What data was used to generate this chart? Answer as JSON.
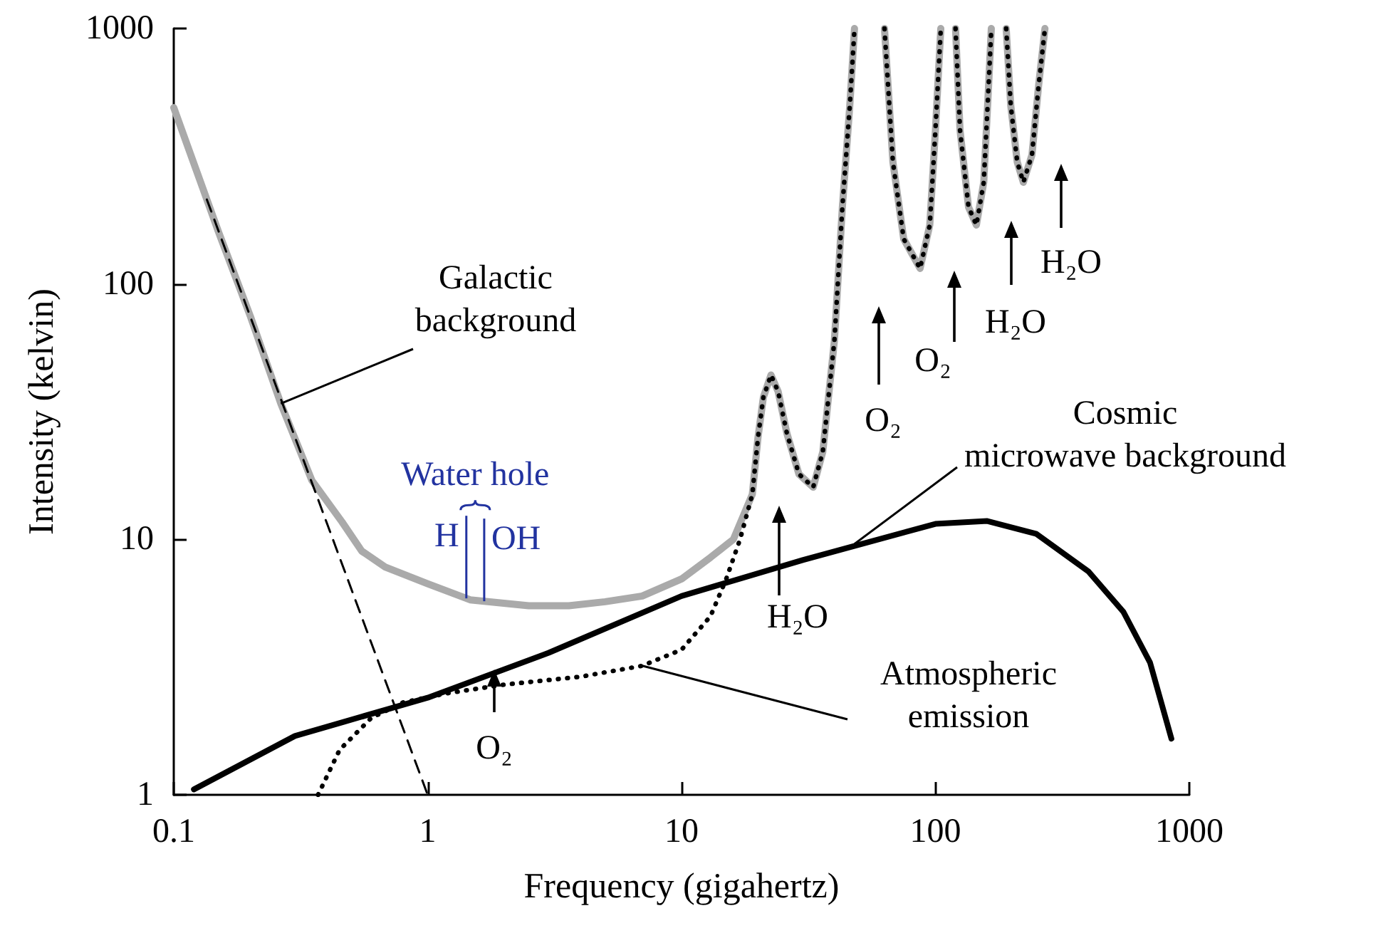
{
  "chart_data": {
    "type": "line",
    "xlabel": "Frequency (gigahertz)",
    "ylabel": "Intensity (kelvin)",
    "log": "xy",
    "xlim": [
      0.1,
      1000
    ],
    "ylim": [
      1,
      1000
    ],
    "xticks": [
      0.1,
      1,
      10,
      100,
      1000
    ],
    "yticks": [
      1,
      10,
      100,
      1000
    ],
    "grid": false,
    "marker": "none",
    "line_style": "solid",
    "series": [
      {
        "color": "#aaaaaa",
        "x": [
          0.1,
          0.15,
          0.2,
          0.264,
          0.35,
          0.46,
          0.55,
          0.68,
          1,
          1.47,
          2.5,
          3.6,
          5,
          7,
          10,
          13,
          16,
          19,
          20,
          21,
          22.5,
          24,
          26,
          29,
          33,
          36,
          40,
          43,
          46,
          48,
          null,
          63,
          68,
          75,
          87,
          95,
          100,
          105,
          null,
          120,
          125,
          135,
          145,
          155,
          162,
          166,
          null,
          190,
          198,
          210,
          222,
          240,
          255,
          270
        ],
        "values": [
          490,
          160,
          75,
          34,
          17,
          11.7,
          9,
          7.8,
          6.7,
          5.8,
          5.5,
          5.5,
          5.7,
          6,
          7,
          8.5,
          10,
          15,
          25,
          36,
          44,
          38,
          26,
          18,
          16,
          22,
          60,
          200,
          500,
          1000,
          null,
          1000,
          300,
          150,
          115,
          170,
          400,
          1000,
          null,
          1000,
          400,
          200,
          170,
          250,
          600,
          1000,
          null,
          1000,
          500,
          300,
          250,
          320,
          600,
          1000
        ]
      },
      {
        "color": "#000000",
        "line_style": "dotted",
        "x": [
          0.37,
          0.45,
          0.6,
          0.8,
          1.2,
          2,
          4,
          7,
          10,
          13,
          15,
          17,
          19,
          20,
          21,
          22.5,
          24,
          26,
          29,
          33,
          36,
          40,
          43,
          46,
          48,
          null,
          63,
          68,
          75,
          87,
          95,
          100,
          105,
          null,
          120,
          125,
          135,
          145,
          155,
          162,
          166,
          null,
          190,
          198,
          210,
          222,
          240,
          255,
          270
        ],
        "values": [
          1,
          1.5,
          2,
          2.3,
          2.5,
          2.7,
          2.9,
          3.2,
          3.7,
          5,
          7,
          10,
          15,
          25,
          36,
          44,
          38,
          26,
          18,
          16,
          22,
          60,
          200,
          500,
          1000,
          null,
          1000,
          300,
          150,
          115,
          170,
          400,
          1000,
          null,
          1000,
          400,
          200,
          170,
          250,
          600,
          1000,
          null,
          1000,
          500,
          300,
          250,
          320,
          600,
          1000
        ]
      },
      {
        "color": "#000000",
        "x": [
          0.12,
          0.3,
          1,
          3,
          10,
          30,
          100,
          160,
          250,
          400,
          550,
          700,
          850
        ],
        "values": [
          1.05,
          1.7,
          2.4,
          3.6,
          6,
          8.3,
          11.5,
          11.8,
          10.5,
          7.5,
          5.2,
          3.3,
          1.66
        ]
      },
      {
        "color": "#000000",
        "line_style": "dashed",
        "x": [
          0.135,
          1
        ],
        "values": [
          214,
          1
        ]
      }
    ],
    "ref_lines": [
      {
        "axis": "x",
        "value": 1.42,
        "label": "H",
        "color": "#2233a0"
      },
      {
        "axis": "x",
        "value": 1.67,
        "label": "OH",
        "color": "#2233a0"
      }
    ],
    "annotations": [
      {
        "text": "Galactic background",
        "x": 0.264,
        "y": 34
      },
      {
        "text": "Cosmic microwave background",
        "x": 48,
        "y": 9.6
      },
      {
        "text": "Atmospheric emission",
        "x": 7,
        "y": 3.2
      },
      "Water hole",
      "O₂",
      "H₂O",
      "O₂",
      "O₂",
      "H₂O",
      "H₂O"
    ]
  }
}
